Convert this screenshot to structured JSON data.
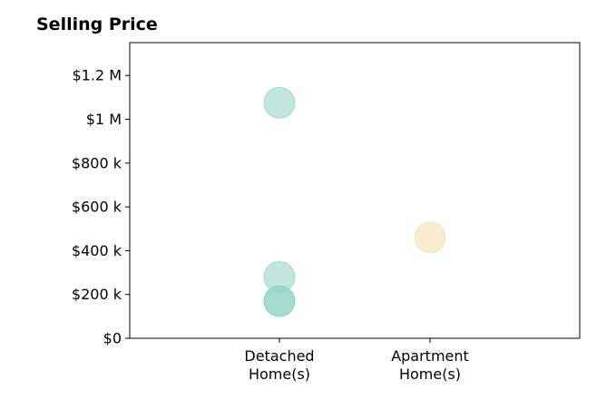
{
  "chart_data": {
    "type": "scatter",
    "title": "Selling Price",
    "xlabel": "",
    "ylabel": "",
    "categories": [
      [
        "Detached",
        "Home(s)"
      ],
      [
        "Apartment",
        "Home(s)"
      ]
    ],
    "ylim": [
      0,
      1350000
    ],
    "yticks": [
      0,
      200000,
      400000,
      600000,
      800000,
      1000000,
      1200000
    ],
    "ytick_labels": [
      "$0",
      "$200 k",
      "$400 k",
      "$600 k",
      "$800 k",
      "$1 M",
      "$1.2 M"
    ],
    "grid": false,
    "points": [
      {
        "category": 0,
        "value": 1075000,
        "color": "#8fd1c4",
        "opacity": 0.55
      },
      {
        "category": 0,
        "value": 280000,
        "color": "#8fd1c4",
        "opacity": 0.55
      },
      {
        "category": 0,
        "value": 170000,
        "color": "#8fd1c4",
        "opacity": 0.55
      },
      {
        "category": 0,
        "value": 170000,
        "color": "#8fd1c4",
        "opacity": 0.55
      },
      {
        "category": 1,
        "value": 460000,
        "color": "#f5deb0",
        "opacity": 0.6
      }
    ]
  }
}
